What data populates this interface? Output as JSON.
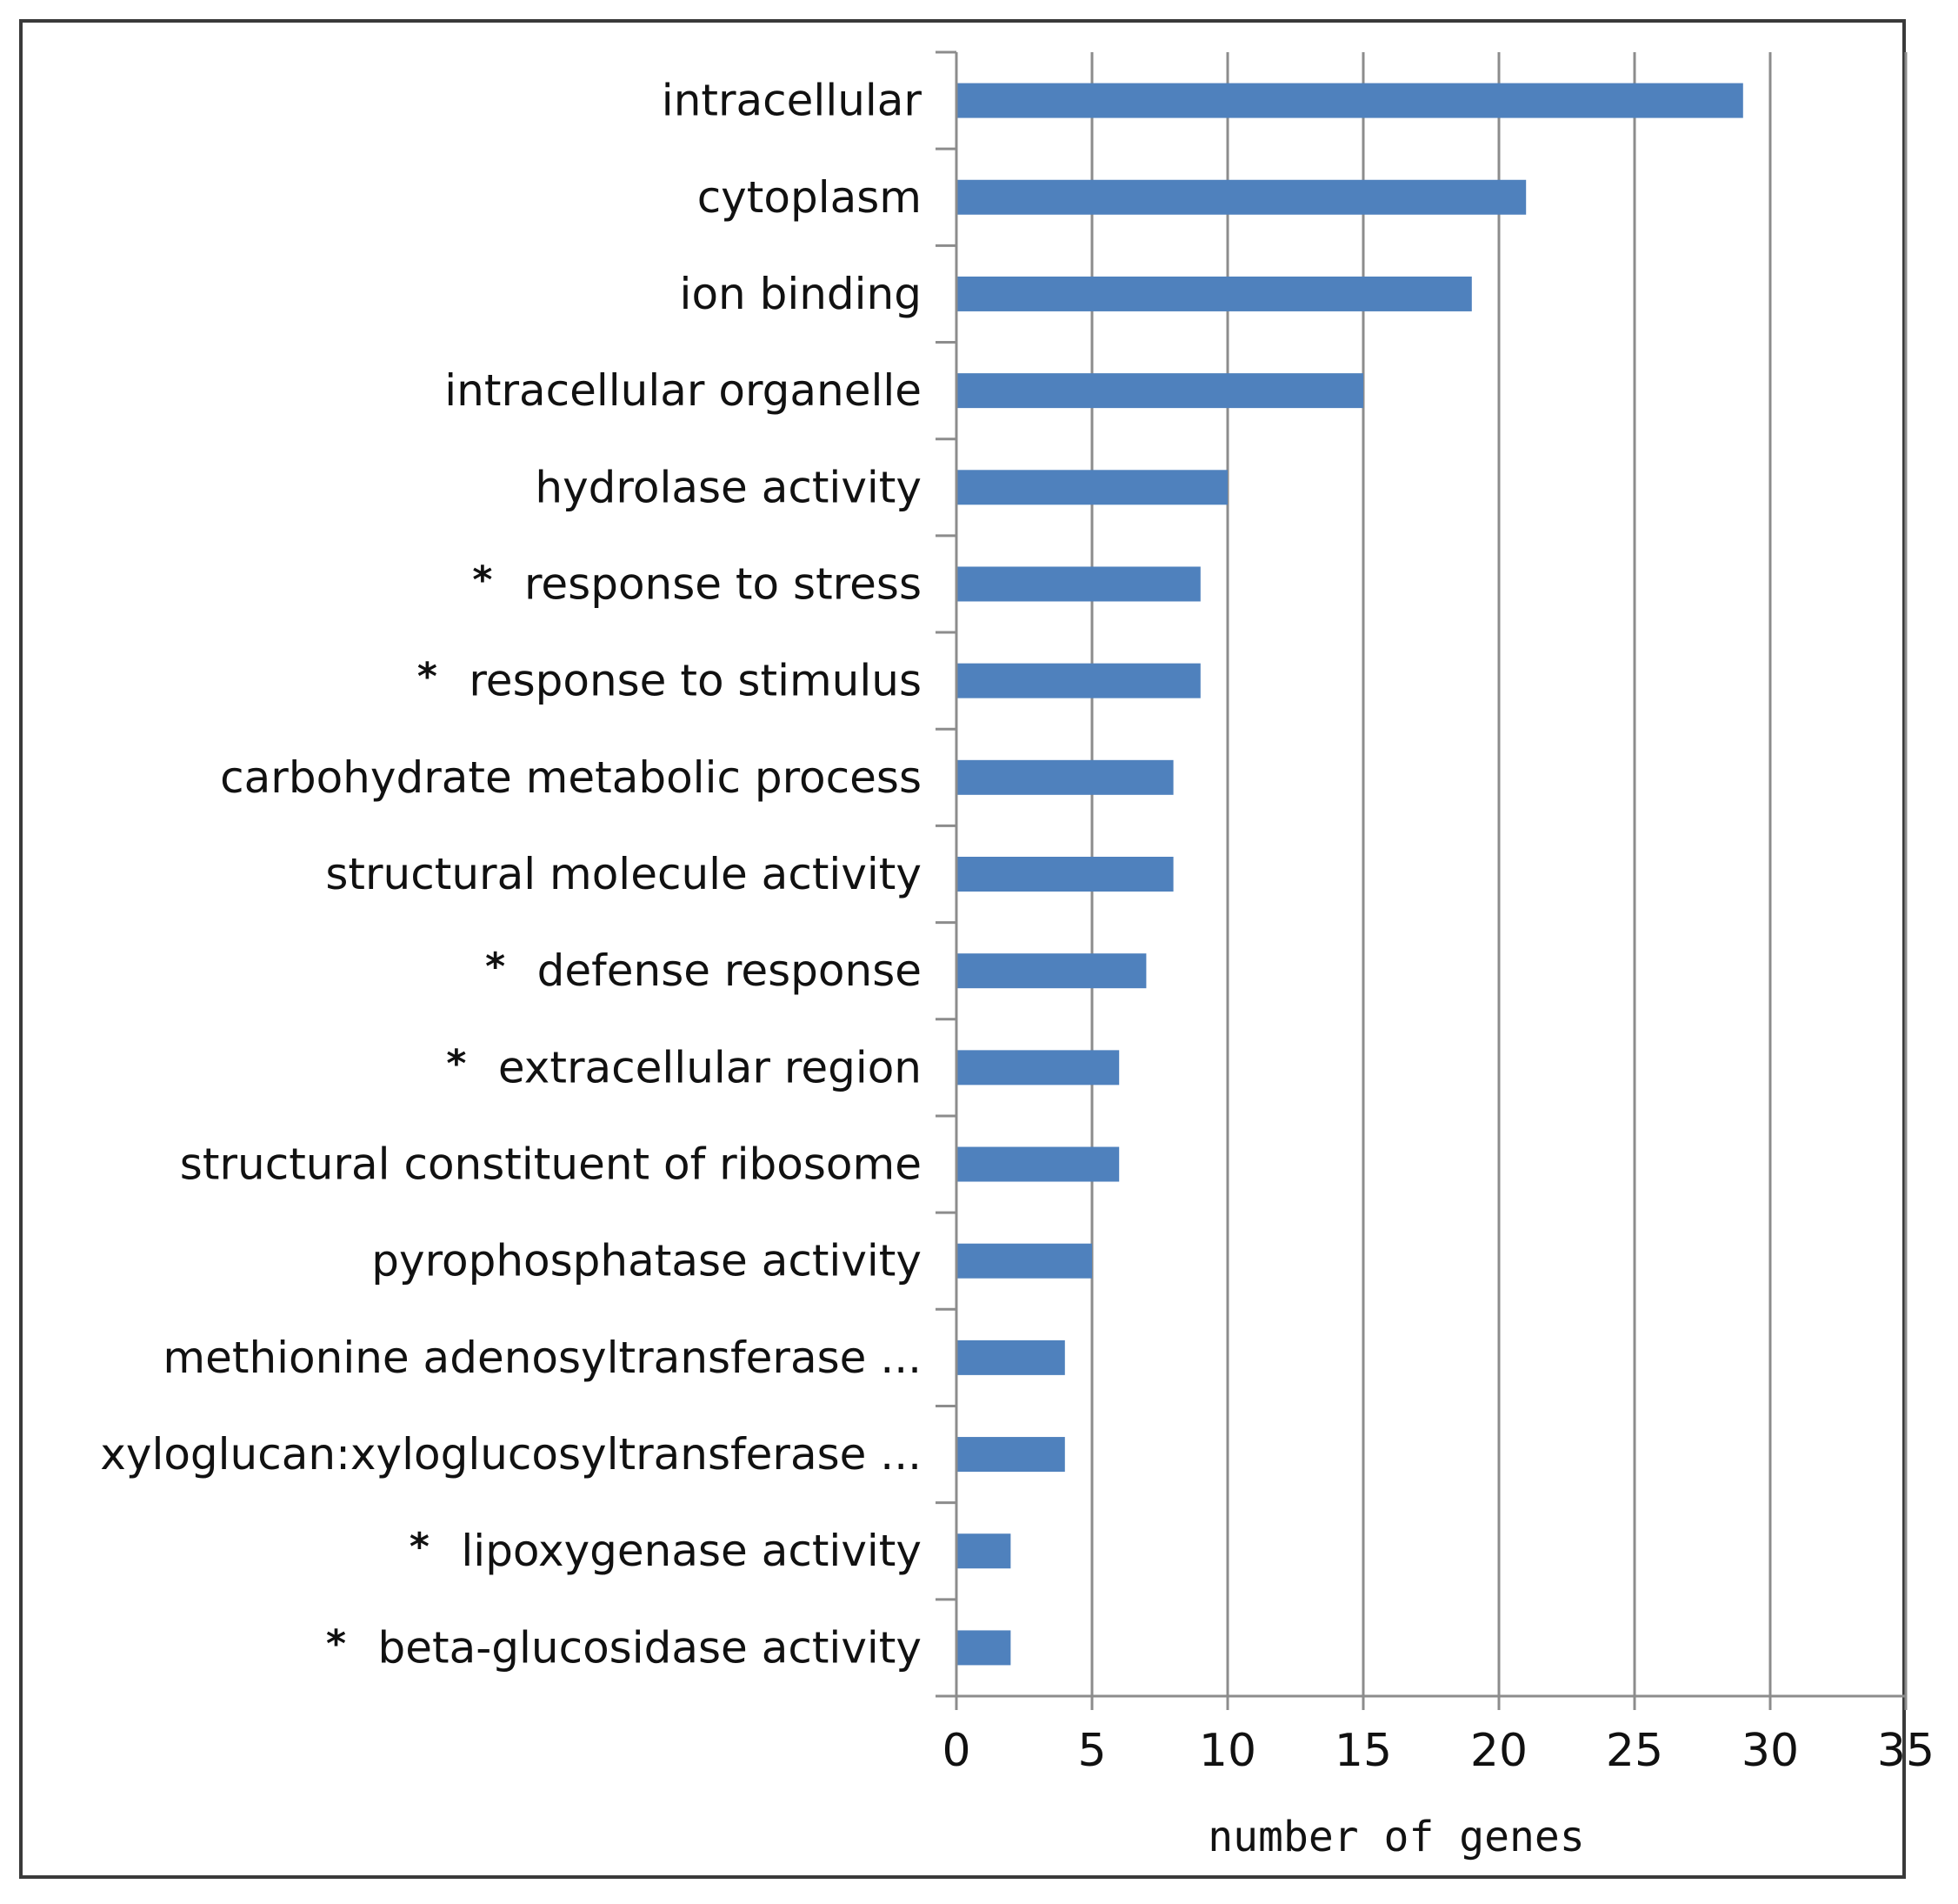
{
  "chart_data": {
    "type": "bar",
    "orientation": "horizontal",
    "title": "",
    "xlabel": "number of genes",
    "ylabel": "",
    "xlim": [
      0,
      35
    ],
    "xticks": [
      "0",
      "5",
      "10",
      "15",
      "20",
      "25",
      "30",
      "35"
    ],
    "grid": "vertical",
    "bar_color": "#4F81BD",
    "categories": [
      "intracellular",
      "cytoplasm",
      "ion binding",
      "intracellular organelle",
      "hydrolase activity",
      "response to stress",
      "response to stimulus",
      "carbohydrate metabolic process",
      "structural molecule activity",
      "defense response",
      "extracellular region",
      "structural constituent of ribosome",
      "pyrophosphatase activity",
      "methionine adenosyltransferase ...",
      "xyloglucan:xyloglucosyltransferase ...",
      "lipoxygenase activity",
      "beta-glucosidase activity"
    ],
    "starred": [
      false,
      false,
      false,
      false,
      false,
      true,
      true,
      false,
      false,
      true,
      true,
      false,
      false,
      false,
      false,
      true,
      true
    ],
    "star_symbol": "*",
    "values": [
      29,
      21,
      19,
      15,
      10,
      9,
      9,
      8,
      8,
      7,
      6,
      6,
      5,
      4,
      4,
      2,
      2
    ]
  }
}
